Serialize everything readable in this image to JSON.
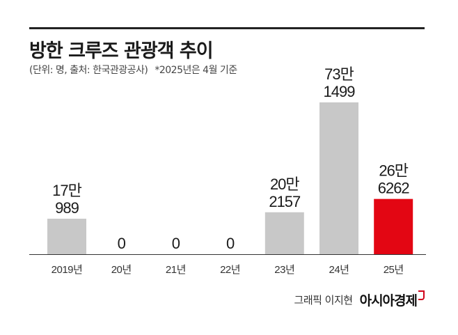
{
  "header": {
    "title": "방한 크루즈 관광객 추이",
    "unit_source": "(단위: 명, 출처: 한국관광공사)",
    "note": "*2025년은 4월 기준"
  },
  "colors": {
    "bar": "#c8c8c8",
    "highlight": "#e30613",
    "baseline": "#333333",
    "text": "#1a1a1a"
  },
  "chart_data": {
    "type": "bar",
    "categories": [
      "2019년",
      "20년",
      "21년",
      "22년",
      "23년",
      "24년",
      "25년"
    ],
    "values": [
      170989,
      0,
      0,
      0,
      202157,
      731499,
      266262
    ],
    "data_labels": [
      [
        "17만",
        "989"
      ],
      [
        "0"
      ],
      [
        "0"
      ],
      [
        "0"
      ],
      [
        "20만",
        "2157"
      ],
      [
        "73만",
        "1499"
      ],
      [
        "26만",
        "6262"
      ]
    ],
    "highlight_index": 6,
    "xlabel": "",
    "ylabel": "",
    "ylim": [
      0,
      731499
    ],
    "grid": false,
    "legend": "none"
  },
  "footer": {
    "credit": "그래픽 이지현",
    "brand": "아시아경제"
  }
}
